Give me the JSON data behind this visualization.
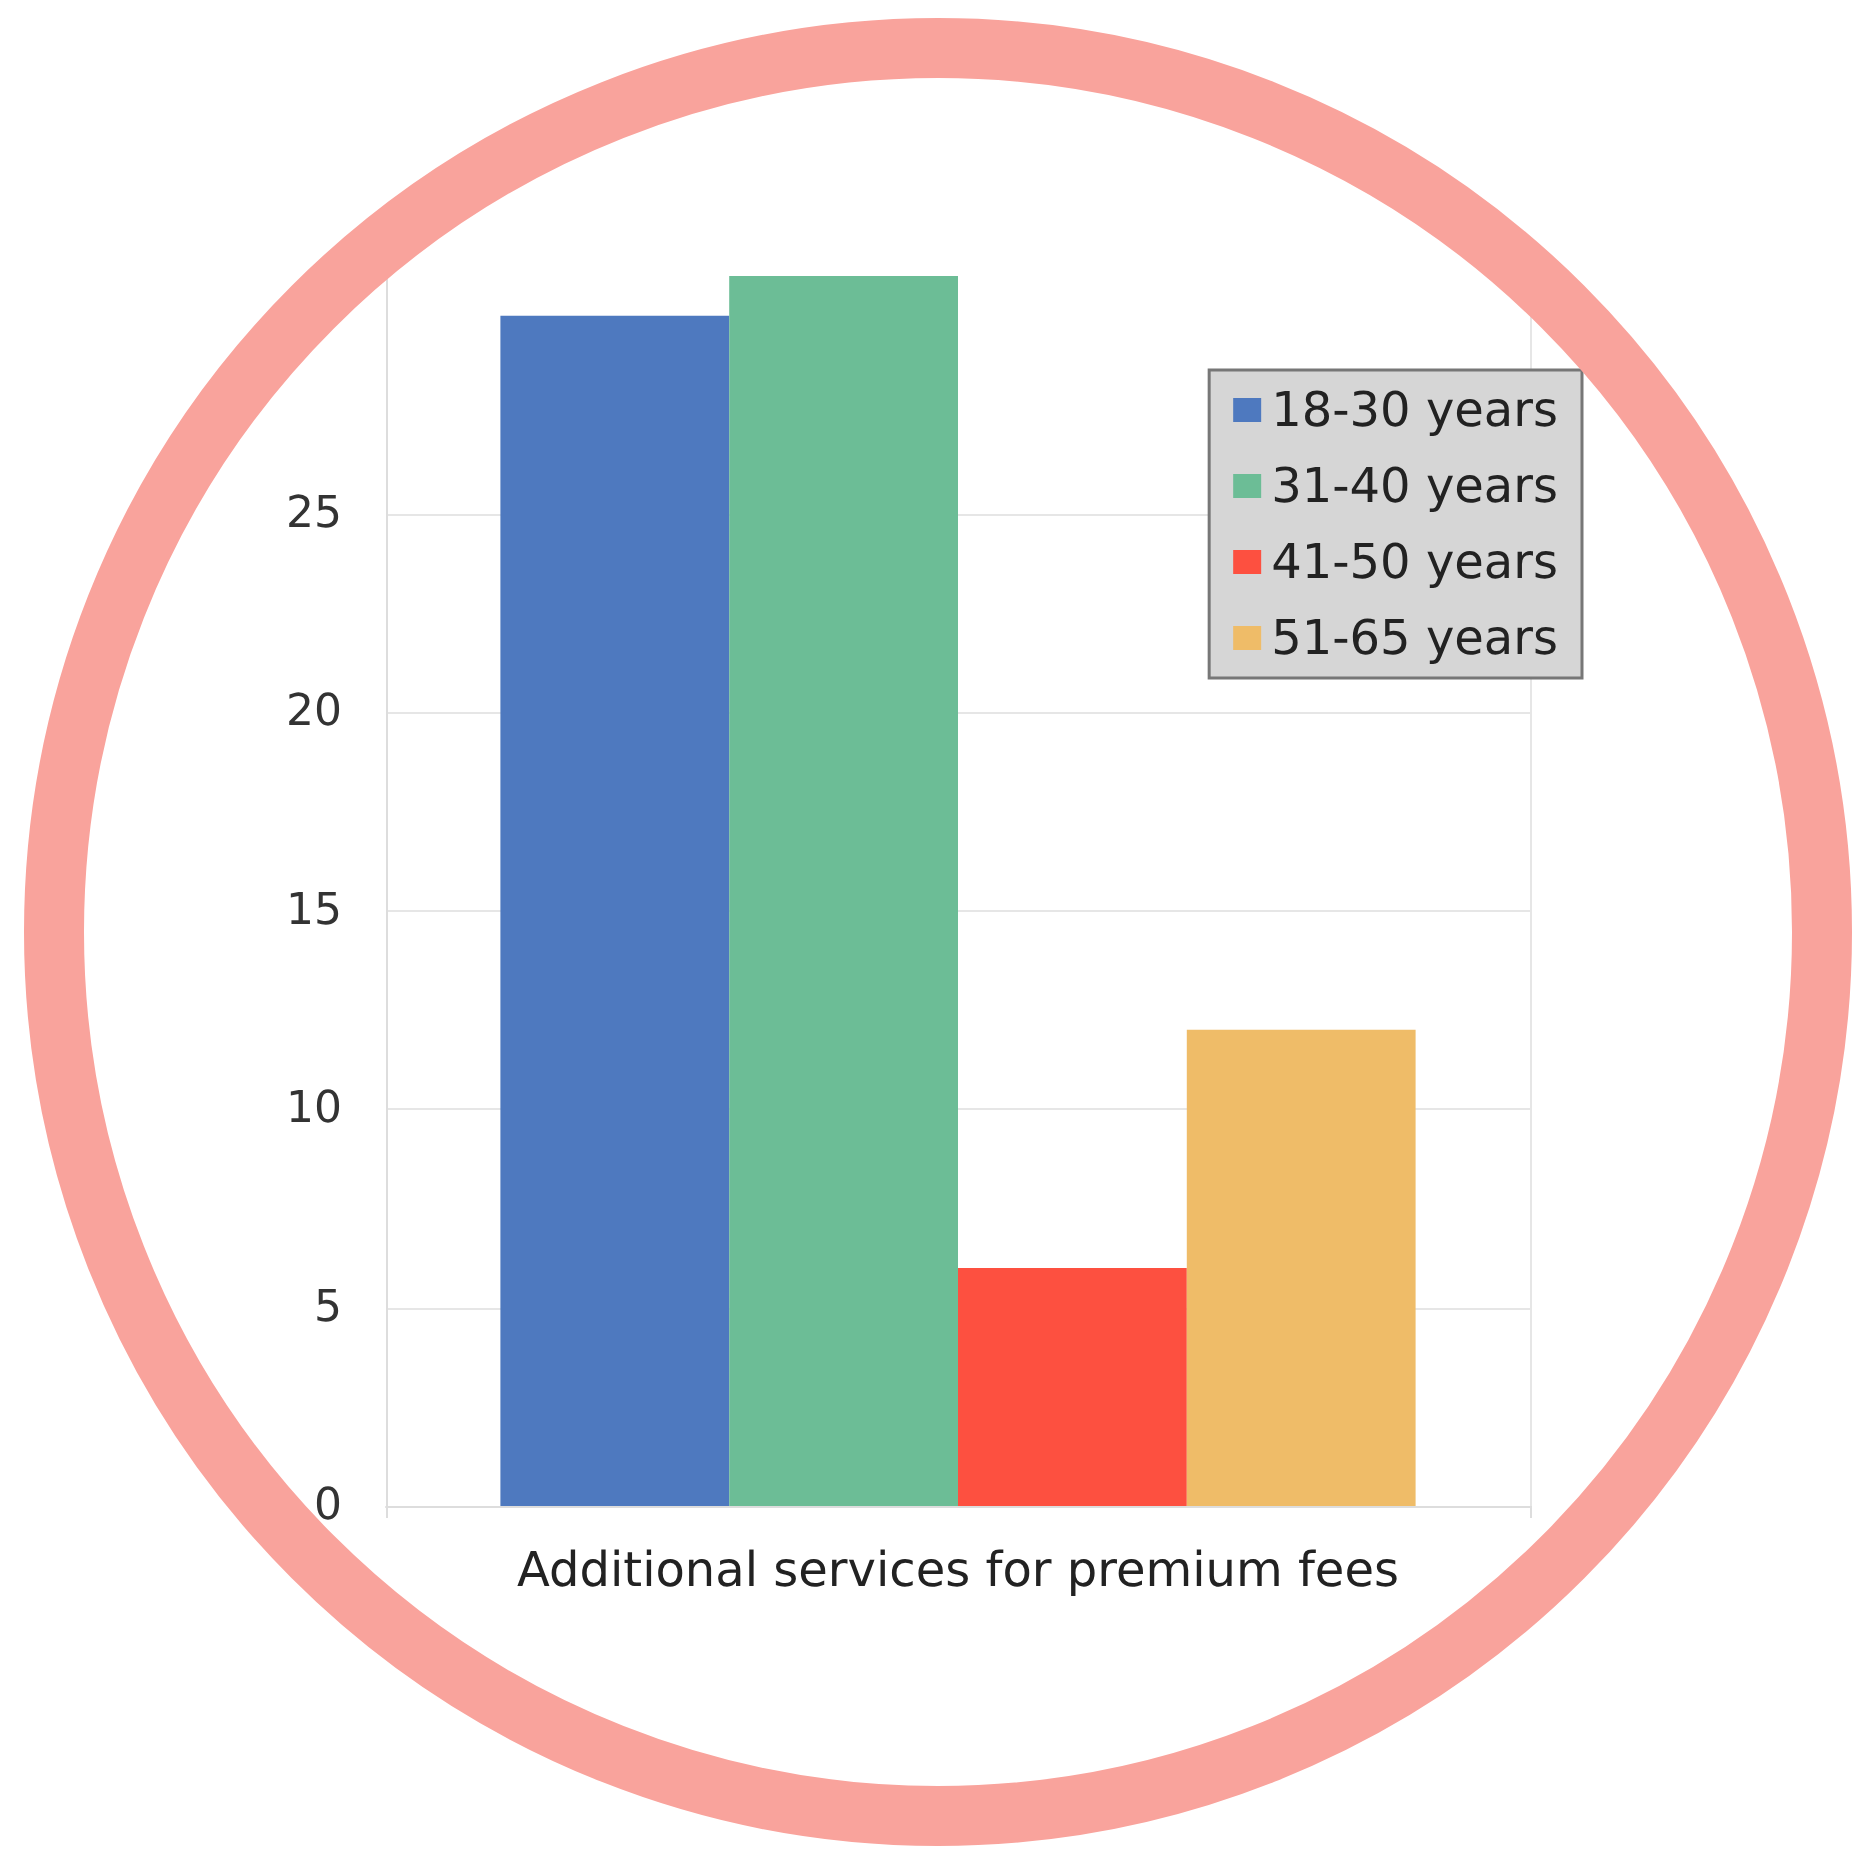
{
  "chart_data": {
    "type": "bar",
    "categories": [
      "Additional services for premium fees"
    ],
    "series": [
      {
        "name": "18-30 years",
        "color": "#4e79bf",
        "values": [
          30
        ]
      },
      {
        "name": "31-40 years",
        "color": "#6cbd96",
        "values": [
          31
        ]
      },
      {
        "name": "41-50 years",
        "color": "#fd5040",
        "values": [
          6
        ]
      },
      {
        "name": "51-65 years",
        "color": "#efbc68",
        "values": [
          12
        ]
      }
    ],
    "ylim": [
      0,
      31
    ],
    "yticks": [
      0,
      5,
      10,
      15,
      20,
      25
    ],
    "grid": true,
    "legend": "top right"
  }
}
